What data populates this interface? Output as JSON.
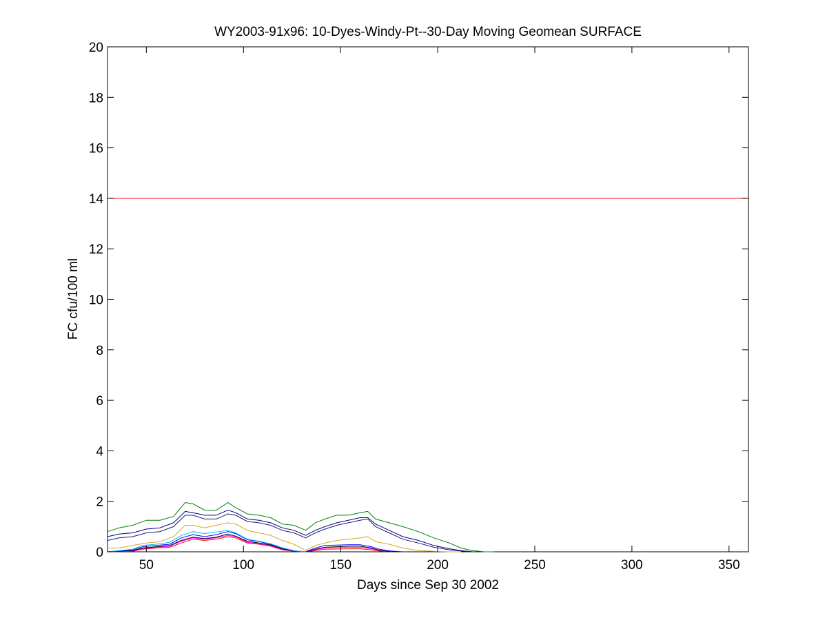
{
  "chart_data": {
    "type": "line",
    "title": "WY2003-91x96: 10-Dyes-Windy-Pt--30-Day Moving Geomean SURFACE",
    "xlabel": "Days since Sep 30 2002",
    "ylabel": "FC cfu/100 ml",
    "xlim": [
      30,
      360
    ],
    "ylim": [
      0,
      20
    ],
    "xticks": [
      50,
      100,
      150,
      200,
      250,
      300,
      350
    ],
    "yticks": [
      0,
      2,
      4,
      6,
      8,
      10,
      12,
      14,
      16,
      18,
      20
    ],
    "grid": false,
    "threshold": {
      "y": 14,
      "color": "#ff0000"
    },
    "series": [
      {
        "color": "#008000",
        "x": [
          30,
          36,
          43,
          50,
          57,
          64,
          70,
          74,
          80,
          86,
          92,
          96,
          102,
          108,
          114,
          120,
          126,
          132,
          137,
          142,
          148,
          154,
          160,
          164,
          168,
          175,
          182,
          190,
          198,
          206,
          212,
          218,
          224,
          229
        ],
        "y": [
          0.8,
          0.95,
          1.05,
          1.25,
          1.25,
          1.4,
          1.95,
          1.9,
          1.65,
          1.65,
          1.95,
          1.75,
          1.5,
          1.45,
          1.35,
          1.1,
          1.05,
          0.85,
          1.15,
          1.3,
          1.45,
          1.45,
          1.55,
          1.6,
          1.3,
          1.15,
          1.0,
          0.8,
          0.55,
          0.35,
          0.15,
          0.05,
          0.0,
          0.0
        ]
      },
      {
        "color": "#000080",
        "x": [
          30,
          36,
          43,
          50,
          57,
          64,
          70,
          74,
          80,
          86,
          92,
          96,
          102,
          108,
          114,
          120,
          126,
          132,
          137,
          142,
          148,
          154,
          160,
          164,
          168,
          175,
          182,
          190,
          198,
          206,
          212,
          218
        ],
        "y": [
          0.6,
          0.7,
          0.75,
          0.9,
          0.95,
          1.15,
          1.6,
          1.55,
          1.45,
          1.45,
          1.65,
          1.55,
          1.3,
          1.25,
          1.15,
          0.95,
          0.85,
          0.65,
          0.85,
          1.0,
          1.15,
          1.25,
          1.35,
          1.35,
          1.1,
          0.85,
          0.6,
          0.45,
          0.25,
          0.12,
          0.05,
          0.0
        ]
      },
      {
        "color": "#191970",
        "x": [
          30,
          36,
          43,
          50,
          57,
          64,
          70,
          74,
          80,
          86,
          92,
          96,
          102,
          108,
          114,
          120,
          126,
          132,
          137,
          142,
          148,
          154,
          160,
          164,
          168,
          175,
          182,
          190,
          198,
          206,
          212,
          218
        ],
        "y": [
          0.45,
          0.55,
          0.6,
          0.75,
          0.8,
          1.0,
          1.45,
          1.45,
          1.3,
          1.3,
          1.5,
          1.45,
          1.2,
          1.15,
          1.05,
          0.85,
          0.75,
          0.55,
          0.75,
          0.9,
          1.05,
          1.15,
          1.25,
          1.3,
          1.0,
          0.75,
          0.5,
          0.35,
          0.18,
          0.08,
          0.03,
          0.0
        ]
      },
      {
        "color": "#ff0000",
        "x": [
          30,
          43,
          48,
          55,
          62,
          68,
          74,
          80,
          86,
          92,
          96,
          102,
          108,
          114,
          120,
          126,
          132,
          137,
          142,
          154,
          160,
          166,
          170,
          176
        ],
        "y": [
          0.0,
          0.02,
          0.1,
          0.15,
          0.18,
          0.35,
          0.5,
          0.45,
          0.5,
          0.6,
          0.55,
          0.35,
          0.3,
          0.22,
          0.08,
          0.02,
          0.0,
          0.05,
          0.1,
          0.12,
          0.12,
          0.08,
          0.03,
          0.0
        ]
      },
      {
        "color": "#ff00ff",
        "x": [
          30,
          43,
          48,
          55,
          62,
          68,
          74,
          80,
          86,
          92,
          96,
          102,
          108,
          114,
          120,
          126,
          132,
          137,
          142,
          154,
          160,
          166,
          170,
          176
        ],
        "y": [
          0.0,
          0.03,
          0.13,
          0.18,
          0.22,
          0.42,
          0.55,
          0.5,
          0.55,
          0.65,
          0.6,
          0.38,
          0.32,
          0.24,
          0.1,
          0.02,
          0.0,
          0.08,
          0.15,
          0.18,
          0.18,
          0.12,
          0.05,
          0.0
        ]
      },
      {
        "color": "#000000",
        "x": [
          30,
          43,
          48,
          55,
          62,
          68,
          74,
          80,
          86,
          92,
          96,
          102,
          108,
          114,
          120,
          126,
          132,
          137,
          142,
          154,
          160,
          166,
          170,
          176
        ],
        "y": [
          0.0,
          0.05,
          0.15,
          0.2,
          0.25,
          0.45,
          0.58,
          0.52,
          0.58,
          0.7,
          0.62,
          0.42,
          0.35,
          0.27,
          0.12,
          0.03,
          0.0,
          0.1,
          0.18,
          0.22,
          0.22,
          0.15,
          0.06,
          0.0
        ]
      },
      {
        "color": "#0000ff",
        "x": [
          30,
          43,
          48,
          55,
          62,
          68,
          74,
          80,
          86,
          92,
          96,
          102,
          108,
          114,
          120,
          126,
          132,
          137,
          142,
          154,
          160,
          166,
          170,
          176,
          182
        ],
        "y": [
          0.0,
          0.08,
          0.2,
          0.25,
          0.3,
          0.55,
          0.68,
          0.6,
          0.68,
          0.8,
          0.72,
          0.48,
          0.4,
          0.3,
          0.15,
          0.04,
          0.0,
          0.15,
          0.25,
          0.28,
          0.28,
          0.2,
          0.1,
          0.03,
          0.0
        ]
      },
      {
        "color": "#00bfff",
        "x": [
          30,
          43,
          48,
          55,
          62,
          68,
          74,
          80,
          86,
          92,
          96,
          102,
          108,
          114,
          120,
          126,
          132
        ],
        "y": [
          0.0,
          0.1,
          0.25,
          0.3,
          0.38,
          0.65,
          0.8,
          0.72,
          0.78,
          0.85,
          0.75,
          0.5,
          0.42,
          0.32,
          0.16,
          0.05,
          0.0
        ]
      },
      {
        "color": "#daa520",
        "x": [
          30,
          36,
          43,
          50,
          57,
          64,
          70,
          74,
          80,
          86,
          92,
          96,
          102,
          108,
          114,
          120,
          126,
          132,
          137,
          142,
          148,
          154,
          160,
          164,
          168,
          175,
          182,
          190,
          198,
          206,
          212
        ],
        "y": [
          0.15,
          0.15,
          0.25,
          0.35,
          0.4,
          0.6,
          1.05,
          1.05,
          0.95,
          1.05,
          1.15,
          1.1,
          0.85,
          0.75,
          0.65,
          0.45,
          0.3,
          0.05,
          0.25,
          0.35,
          0.45,
          0.5,
          0.55,
          0.6,
          0.4,
          0.3,
          0.15,
          0.05,
          0.02,
          0.0,
          0.0
        ]
      }
    ]
  }
}
